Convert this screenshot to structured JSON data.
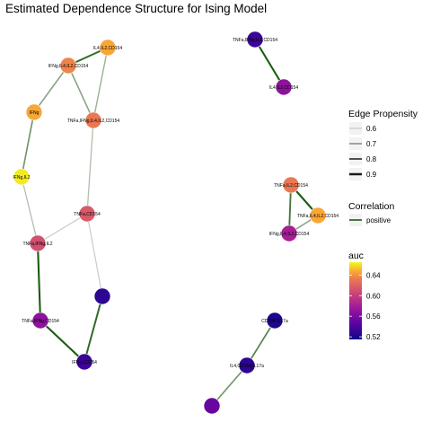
{
  "title": "Estimated Dependence Structure for Ising Model",
  "nodes": [
    {
      "id": "n1",
      "label": "IL4,IL2,CD154",
      "auc": 0.635
    },
    {
      "id": "n2",
      "label": "IFNg,IL4,IL2,CD154",
      "auc": 0.62
    },
    {
      "id": "n3",
      "label": "IFNg",
      "auc": 0.635
    },
    {
      "id": "n4",
      "label": "TNFa,IFNg,IL4,IL2,CD154",
      "auc": 0.615
    },
    {
      "id": "n5",
      "label": "IFNg,IL2",
      "auc": 0.66
    },
    {
      "id": "n6",
      "label": "TNFa,CD154",
      "auc": 0.6
    },
    {
      "id": "n7",
      "label": "TNFa,IFNg,IL2",
      "auc": 0.595
    },
    {
      "id": "n8",
      "label": "",
      "auc": 0.525
    },
    {
      "id": "n9",
      "label": "TNFa,IFNg,CD154",
      "auc": 0.56
    },
    {
      "id": "n10",
      "label": "IFNg,CD154",
      "auc": 0.53
    },
    {
      "id": "n11",
      "label": "TNFa,IFNg,IL2,CD154",
      "auc": 0.53
    },
    {
      "id": "n12",
      "label": "IL4,IL2,CD154",
      "auc": 0.56
    },
    {
      "id": "n13",
      "label": "TNFa,IL2,CD154",
      "auc": 0.615
    },
    {
      "id": "n14",
      "label": "TNFa,IL4,IL2,CD154",
      "auc": 0.635
    },
    {
      "id": "n15",
      "label": "IFNg,IL4,IL2,CD154",
      "auc": 0.57
    },
    {
      "id": "n16",
      "label": "CD154,IL17a",
      "auc": 0.52
    },
    {
      "id": "n17",
      "label": "IL4,CD154,IL17a",
      "auc": 0.525
    },
    {
      "id": "n18",
      "label": "",
      "auc": 0.545
    }
  ],
  "edges": [
    {
      "source": "n1",
      "target": "n2",
      "propensity": 0.85
    },
    {
      "source": "n2",
      "target": "n3",
      "propensity": 0.65
    },
    {
      "source": "n2",
      "target": "n4",
      "propensity": 0.65
    },
    {
      "source": "n1",
      "target": "n4",
      "propensity": 0.6
    },
    {
      "source": "n3",
      "target": "n5",
      "propensity": 0.7
    },
    {
      "source": "n4",
      "target": "n6",
      "propensity": 0.55
    },
    {
      "source": "n5",
      "target": "n7",
      "propensity": 0.55
    },
    {
      "source": "n6",
      "target": "n7",
      "propensity": 0.5
    },
    {
      "source": "n6",
      "target": "n8",
      "propensity": 0.5
    },
    {
      "source": "n7",
      "target": "n9",
      "propensity": 0.9
    },
    {
      "source": "n9",
      "target": "n10",
      "propensity": 0.9
    },
    {
      "source": "n8",
      "target": "n10",
      "propensity": 0.85
    },
    {
      "source": "n11",
      "target": "n12",
      "propensity": 0.9
    },
    {
      "source": "n13",
      "target": "n14",
      "propensity": 0.9
    },
    {
      "source": "n13",
      "target": "n15",
      "propensity": 0.8
    },
    {
      "source": "n14",
      "target": "n15",
      "propensity": 0.65
    },
    {
      "source": "n16",
      "target": "n17",
      "propensity": 0.75
    },
    {
      "source": "n17",
      "target": "n18",
      "propensity": 0.7
    }
  ],
  "legend": {
    "propensity": {
      "title": "Edge Propensity",
      "items": [
        "0.6",
        "0.7",
        "0.8",
        "0.9"
      ]
    },
    "correlation": {
      "title": "Correlation",
      "items": [
        "positive"
      ],
      "color": "#1a5c10"
    },
    "auc": {
      "title": "auc",
      "ticks": [
        "0.64",
        "0.60",
        "0.56",
        "0.52"
      ],
      "min": 0.515,
      "max": 0.665
    }
  },
  "colors": {
    "edge_positive": "#1a5c10",
    "edge_light": "#c8cdc4",
    "palette_plasma": [
      "#0d0887",
      "#5b02a3",
      "#9a179b",
      "#cb4678",
      "#eb7852",
      "#fbb32f",
      "#f0f921"
    ]
  }
}
